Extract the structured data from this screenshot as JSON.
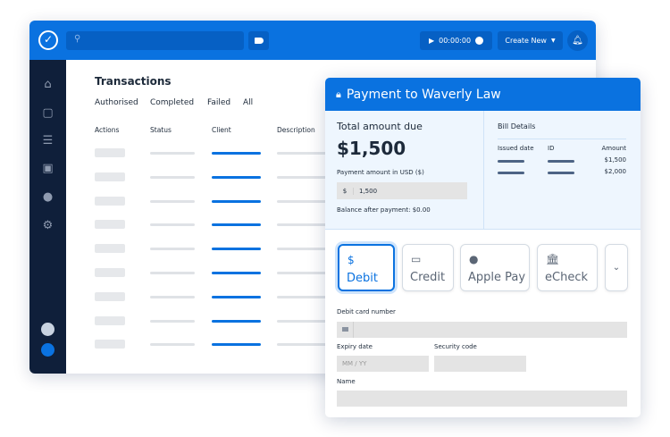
{
  "header": {
    "timer": "00:00:00",
    "create_new": "Create New"
  },
  "transactions": {
    "title": "Transactions",
    "tabs": [
      "Authorised",
      "Completed",
      "Failed",
      "All"
    ],
    "columns": [
      "Actions",
      "Status",
      "Client",
      "Description"
    ]
  },
  "payment": {
    "title": "Payment to Waverly Law",
    "total_label": "Total amount due",
    "total": "$1,500",
    "amount_label": "Payment amount in USD ($)",
    "currency_symbol": "$",
    "amount_value": "1,500",
    "balance": "Balance after payment: $0.00",
    "bill": {
      "title": "Bill Details",
      "columns": [
        "Issued date",
        "ID",
        "Amount"
      ],
      "amounts": [
        "$1,500",
        "$2,000"
      ]
    },
    "methods": [
      {
        "label": "Debit",
        "icon": "dollar-card-icon",
        "selected": true
      },
      {
        "label": "Credit",
        "icon": "credit-card-icon"
      },
      {
        "label": "Apple Pay",
        "icon": "apple-icon"
      },
      {
        "label": "eCheck",
        "icon": "bank-icon"
      }
    ],
    "card_label": "Debit card number",
    "expiry_label": "Expiry date",
    "expiry_placeholder": "MM / YY",
    "security_label": "Security code",
    "name_label": "Name"
  },
  "colors": {
    "brand": "#0a72e0",
    "sidebar": "#0f1f3a"
  }
}
